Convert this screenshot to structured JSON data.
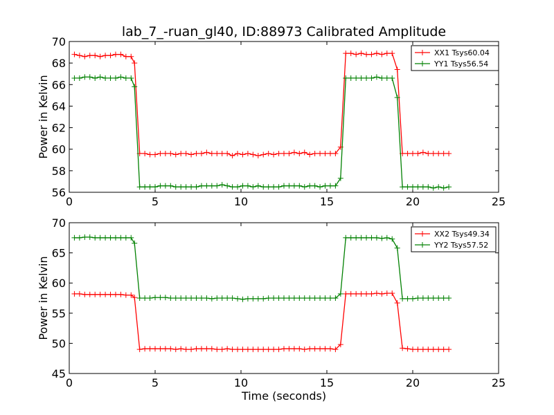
{
  "figure": {
    "title": "lab_7_-ruan_gl40, ID:88973 Calibrated Amplitude"
  },
  "chart_data": [
    {
      "type": "line",
      "title": "lab_7_-ruan_gl40, ID:88973 Calibrated Amplitude",
      "xlabel": "",
      "ylabel": "Power in Kelvin",
      "xlim": [
        0,
        25
      ],
      "ylim": [
        56,
        70
      ],
      "xticks": [
        0,
        5,
        10,
        15,
        20,
        25
      ],
      "yticks": [
        56,
        58,
        60,
        62,
        64,
        66,
        68,
        70
      ],
      "grid": false,
      "legend_position": "top-right",
      "x": [
        0.3,
        0.6,
        0.9,
        1.2,
        1.5,
        1.8,
        2.1,
        2.4,
        2.7,
        3.0,
        3.3,
        3.6,
        3.8,
        4.1,
        4.4,
        4.7,
        5.0,
        5.3,
        5.6,
        5.9,
        6.2,
        6.5,
        6.8,
        7.1,
        7.4,
        7.7,
        8.0,
        8.3,
        8.6,
        8.9,
        9.2,
        9.5,
        9.8,
        10.1,
        10.4,
        10.7,
        11.0,
        11.3,
        11.6,
        11.9,
        12.2,
        12.5,
        12.8,
        13.1,
        13.4,
        13.7,
        14.0,
        14.3,
        14.6,
        14.9,
        15.2,
        15.5,
        15.8,
        16.1,
        16.4,
        16.7,
        17.0,
        17.3,
        17.6,
        17.9,
        18.2,
        18.5,
        18.8,
        19.1,
        19.4,
        19.7,
        20.0,
        20.3,
        20.6,
        20.9,
        21.2,
        21.5,
        21.8,
        22.1
      ],
      "series": [
        {
          "name": "XX1 Tsys60.04",
          "color": "#ff0000",
          "values": [
            68.8,
            68.7,
            68.6,
            68.7,
            68.7,
            68.6,
            68.7,
            68.7,
            68.8,
            68.8,
            68.6,
            68.6,
            68.0,
            59.6,
            59.6,
            59.5,
            59.5,
            59.6,
            59.6,
            59.6,
            59.5,
            59.6,
            59.6,
            59.5,
            59.6,
            59.6,
            59.7,
            59.6,
            59.6,
            59.6,
            59.6,
            59.4,
            59.6,
            59.5,
            59.6,
            59.5,
            59.4,
            59.5,
            59.6,
            59.5,
            59.6,
            59.6,
            59.6,
            59.7,
            59.6,
            59.7,
            59.5,
            59.6,
            59.6,
            59.6,
            59.6,
            59.6,
            60.2,
            68.9,
            68.9,
            68.8,
            68.9,
            68.8,
            68.8,
            68.9,
            68.8,
            68.9,
            68.9,
            67.4,
            59.6,
            59.6,
            59.6,
            59.6,
            59.7,
            59.6,
            59.6,
            59.6,
            59.6,
            59.6
          ]
        },
        {
          "name": "YY1 Tsys56.54",
          "color": "#008000",
          "values": [
            66.6,
            66.6,
            66.7,
            66.7,
            66.6,
            66.7,
            66.6,
            66.6,
            66.6,
            66.7,
            66.6,
            66.6,
            65.8,
            56.5,
            56.5,
            56.5,
            56.5,
            56.6,
            56.6,
            56.6,
            56.5,
            56.5,
            56.5,
            56.5,
            56.5,
            56.6,
            56.6,
            56.6,
            56.6,
            56.7,
            56.6,
            56.5,
            56.5,
            56.6,
            56.6,
            56.5,
            56.6,
            56.5,
            56.5,
            56.5,
            56.5,
            56.6,
            56.6,
            56.6,
            56.6,
            56.5,
            56.6,
            56.6,
            56.5,
            56.6,
            56.6,
            56.6,
            57.3,
            66.6,
            66.6,
            66.6,
            66.6,
            66.6,
            66.6,
            66.7,
            66.6,
            66.6,
            66.6,
            64.8,
            56.5,
            56.5,
            56.5,
            56.5,
            56.5,
            56.5,
            56.4,
            56.5,
            56.4,
            56.5
          ]
        }
      ]
    },
    {
      "type": "line",
      "title": "",
      "xlabel": "Time (seconds)",
      "ylabel": "Power in Kelvin",
      "xlim": [
        0,
        25
      ],
      "ylim": [
        45,
        70
      ],
      "xticks": [
        0,
        5,
        10,
        15,
        20,
        25
      ],
      "yticks": [
        45,
        50,
        55,
        60,
        65,
        70
      ],
      "grid": false,
      "legend_position": "top-right",
      "x": [
        0.3,
        0.6,
        0.9,
        1.2,
        1.5,
        1.8,
        2.1,
        2.4,
        2.7,
        3.0,
        3.3,
        3.6,
        3.8,
        4.1,
        4.4,
        4.7,
        5.0,
        5.3,
        5.6,
        5.9,
        6.2,
        6.5,
        6.8,
        7.1,
        7.4,
        7.7,
        8.0,
        8.3,
        8.6,
        8.9,
        9.2,
        9.5,
        9.8,
        10.1,
        10.4,
        10.7,
        11.0,
        11.3,
        11.6,
        11.9,
        12.2,
        12.5,
        12.8,
        13.1,
        13.4,
        13.7,
        14.0,
        14.3,
        14.6,
        14.9,
        15.2,
        15.5,
        15.8,
        16.1,
        16.4,
        16.7,
        17.0,
        17.3,
        17.6,
        17.9,
        18.2,
        18.5,
        18.8,
        19.1,
        19.4,
        19.7,
        20.0,
        20.3,
        20.6,
        20.9,
        21.2,
        21.5,
        21.8,
        22.1
      ],
      "series": [
        {
          "name": "XX2 Tsys49.34",
          "color": "#ff0000",
          "values": [
            58.2,
            58.2,
            58.1,
            58.1,
            58.1,
            58.1,
            58.1,
            58.1,
            58.1,
            58.1,
            58.0,
            58.0,
            57.6,
            49.0,
            49.1,
            49.1,
            49.1,
            49.1,
            49.1,
            49.1,
            49.0,
            49.1,
            49.0,
            49.0,
            49.1,
            49.1,
            49.1,
            49.1,
            49.0,
            49.0,
            49.1,
            49.0,
            49.0,
            49.0,
            49.0,
            49.0,
            49.0,
            49.0,
            49.0,
            49.0,
            49.0,
            49.1,
            49.1,
            49.1,
            49.1,
            49.0,
            49.1,
            49.1,
            49.1,
            49.1,
            49.1,
            49.0,
            49.8,
            58.2,
            58.2,
            58.2,
            58.2,
            58.2,
            58.2,
            58.3,
            58.2,
            58.3,
            58.3,
            56.7,
            49.2,
            49.1,
            49.0,
            49.0,
            49.0,
            49.0,
            49.0,
            49.0,
            49.0,
            49.0
          ]
        },
        {
          "name": "YY2 Tsys57.52",
          "color": "#008000",
          "values": [
            67.5,
            67.5,
            67.6,
            67.6,
            67.5,
            67.5,
            67.5,
            67.5,
            67.5,
            67.5,
            67.5,
            67.5,
            66.6,
            57.5,
            57.5,
            57.5,
            57.6,
            57.6,
            57.6,
            57.5,
            57.5,
            57.5,
            57.5,
            57.5,
            57.5,
            57.5,
            57.5,
            57.4,
            57.5,
            57.5,
            57.5,
            57.5,
            57.4,
            57.3,
            57.4,
            57.4,
            57.4,
            57.4,
            57.5,
            57.5,
            57.5,
            57.5,
            57.5,
            57.5,
            57.5,
            57.5,
            57.5,
            57.5,
            57.5,
            57.5,
            57.5,
            57.5,
            58.2,
            67.5,
            67.5,
            67.5,
            67.5,
            67.5,
            67.5,
            67.5,
            67.4,
            67.5,
            67.3,
            65.8,
            57.4,
            57.4,
            57.4,
            57.5,
            57.5,
            57.5,
            57.5,
            57.5,
            57.5,
            57.5
          ]
        }
      ]
    }
  ]
}
